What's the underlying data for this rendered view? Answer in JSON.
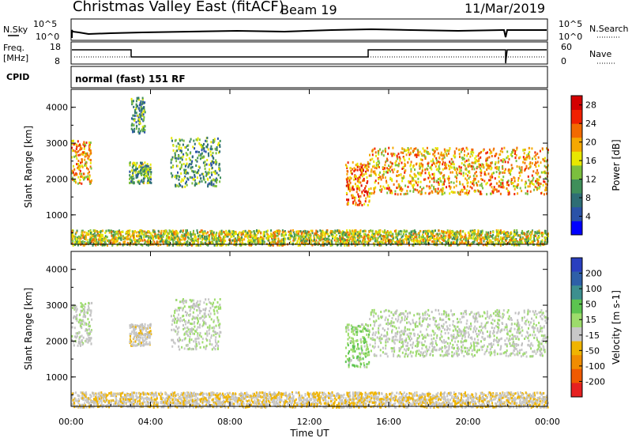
{
  "header": {
    "title": "Christmas Valley East (fitACF)",
    "beam": "Beam 19",
    "date": "11/Mar/2019"
  },
  "strips": {
    "nsky_label": "N.Sky",
    "nsky_ticks": [
      "10^5",
      "10^0"
    ],
    "nsearch_label": "N.Search",
    "nsearch_ticks": [
      "10^5",
      "10^0"
    ],
    "freq_label": "Freq.",
    "freq_unit": "[MHz]",
    "freq_ticks": [
      "18",
      "8"
    ],
    "nave_label": "Nave",
    "nave_ticks": [
      "60",
      "0"
    ],
    "cpid_label": "CPID",
    "cpid_value": "normal (fast) 151 RF"
  },
  "colors": {
    "power_scale": [
      "#0000ff",
      "#2a52a8",
      "#2e6e75",
      "#3f8f5a",
      "#7bbf3e",
      "#e8e800",
      "#f5a800",
      "#f26a00",
      "#f02000",
      "#d40000"
    ],
    "velocity_scale": [
      "#2a3fbf",
      "#2e5fa8",
      "#3d8f8f",
      "#5cc450",
      "#9ddc6c",
      "#c8c8c8",
      "#f0b400",
      "#f08c00",
      "#f05a00",
      "#e62020"
    ],
    "ground_scatter": "#c0c0c0"
  },
  "chart_data": [
    {
      "type": "heatmap",
      "name": "power",
      "ylabel": "Slant Range [km]",
      "xlabel": "Time UT",
      "xticks": [
        "00:00",
        "04:00",
        "08:00",
        "12:00",
        "16:00",
        "20:00",
        "00:00"
      ],
      "xlim_hours": [
        0,
        24
      ],
      "yticks": [
        "1000",
        "2000",
        "3000",
        "4000"
      ],
      "ylim": [
        180,
        4500
      ],
      "colorbar_label": "Power [dB]",
      "colorbar_ticks": [
        "4",
        "8",
        "12",
        "16",
        "20",
        "24",
        "28"
      ],
      "colorbar_range": [
        0,
        30
      ],
      "echo_regions": [
        {
          "t0": 0.0,
          "t1": 1.0,
          "r0": 1900,
          "r1": 3100,
          "power": 20
        },
        {
          "t0": 2.9,
          "t1": 4.0,
          "r0": 1900,
          "r1": 2500,
          "power": 12
        },
        {
          "t0": 3.0,
          "t1": 3.7,
          "r0": 3300,
          "r1": 4300,
          "power": 10
        },
        {
          "t0": 5.0,
          "t1": 7.5,
          "r0": 1800,
          "r1": 3200,
          "power": 11
        },
        {
          "t0": 13.8,
          "t1": 15.0,
          "r0": 1300,
          "r1": 2500,
          "power": 22
        },
        {
          "t0": 15.0,
          "t1": 24.0,
          "r0": 1600,
          "r1": 2900,
          "power": 19
        },
        {
          "t0": 0.0,
          "t1": 24.0,
          "r0": 180,
          "r1": 600,
          "power": 16
        }
      ]
    },
    {
      "type": "heatmap",
      "name": "velocity",
      "ylabel": "Slant Range [km]",
      "xlabel": "Time UT",
      "xticks": [
        "00:00",
        "04:00",
        "08:00",
        "12:00",
        "16:00",
        "20:00",
        "00:00"
      ],
      "xlim_hours": [
        0,
        24
      ],
      "yticks": [
        "1000",
        "2000",
        "3000",
        "4000"
      ],
      "ylim": [
        180,
        4500
      ],
      "colorbar_label": "Velocity [m s-1]",
      "colorbar_ticks": [
        "200",
        "100",
        "50",
        "15",
        "-15",
        "-50",
        "-100",
        "-200"
      ],
      "colorbar_range": [
        -250,
        250
      ],
      "echo_regions": [
        {
          "t0": 0.0,
          "t1": 1.0,
          "r0": 1900,
          "r1": 3100,
          "velocity": 0
        },
        {
          "t0": 2.9,
          "t1": 4.0,
          "r0": 1900,
          "r1": 2500,
          "velocity": -30
        },
        {
          "t0": 5.0,
          "t1": 7.5,
          "r0": 1800,
          "r1": 3200,
          "velocity": 0
        },
        {
          "t0": 13.8,
          "t1": 15.0,
          "r0": 1300,
          "r1": 2500,
          "velocity": 40
        },
        {
          "t0": 15.0,
          "t1": 24.0,
          "r0": 1600,
          "r1": 2900,
          "velocity": 0
        },
        {
          "t0": 0.0,
          "t1": 24.0,
          "r0": 180,
          "r1": 600,
          "velocity": -40
        }
      ]
    }
  ]
}
